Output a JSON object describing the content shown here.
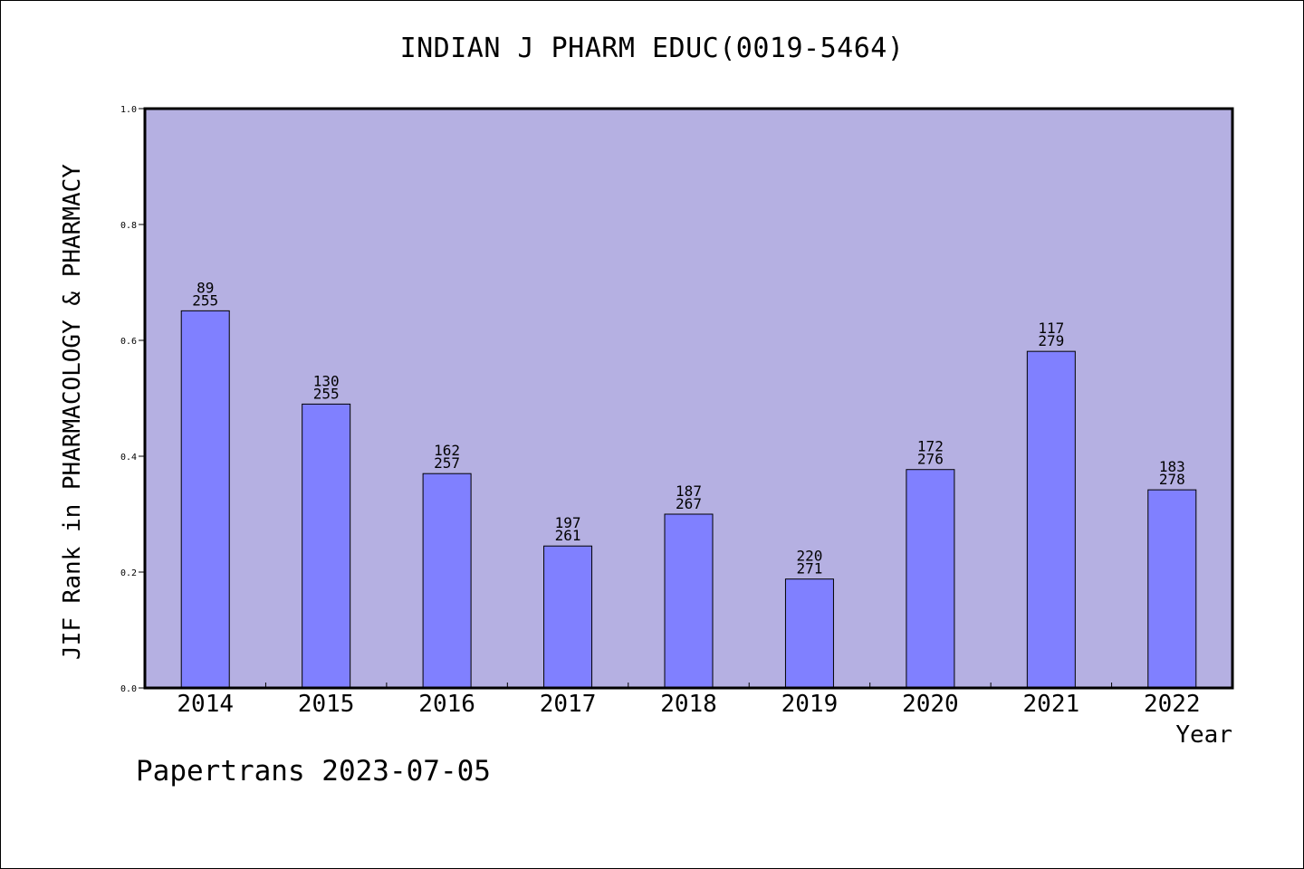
{
  "title": "INDIAN J PHARM EDUC(0019-5464)",
  "footer": "Papertrans 2023-07-05",
  "colors": {
    "plot_background": "#b5b0e2",
    "bar_fill": "#8080ff",
    "bar_stroke": "#000000"
  },
  "chart_data": {
    "type": "bar",
    "title": "INDIAN J PHARM EDUC(0019-5464)",
    "xlabel": "Year",
    "ylabel": "JIF Rank in PHARMACOLOGY & PHARMACY",
    "ylim": [
      0,
      1.0
    ],
    "yticks": [
      "0.0",
      "0.2",
      "0.4",
      "0.6",
      "0.8",
      "1.0"
    ],
    "grid": false,
    "categories": [
      "2014",
      "2015",
      "2016",
      "2017",
      "2018",
      "2019",
      "2020",
      "2021",
      "2022"
    ],
    "values": [
      0.651,
      0.49,
      0.37,
      0.245,
      0.3,
      0.188,
      0.377,
      0.581,
      0.342
    ],
    "rank": [
      "89",
      "130",
      "162",
      "197",
      "187",
      "220",
      "172",
      "117",
      "183"
    ],
    "total": [
      "255",
      "255",
      "257",
      "261",
      "267",
      "271",
      "276",
      "279",
      "278"
    ]
  }
}
